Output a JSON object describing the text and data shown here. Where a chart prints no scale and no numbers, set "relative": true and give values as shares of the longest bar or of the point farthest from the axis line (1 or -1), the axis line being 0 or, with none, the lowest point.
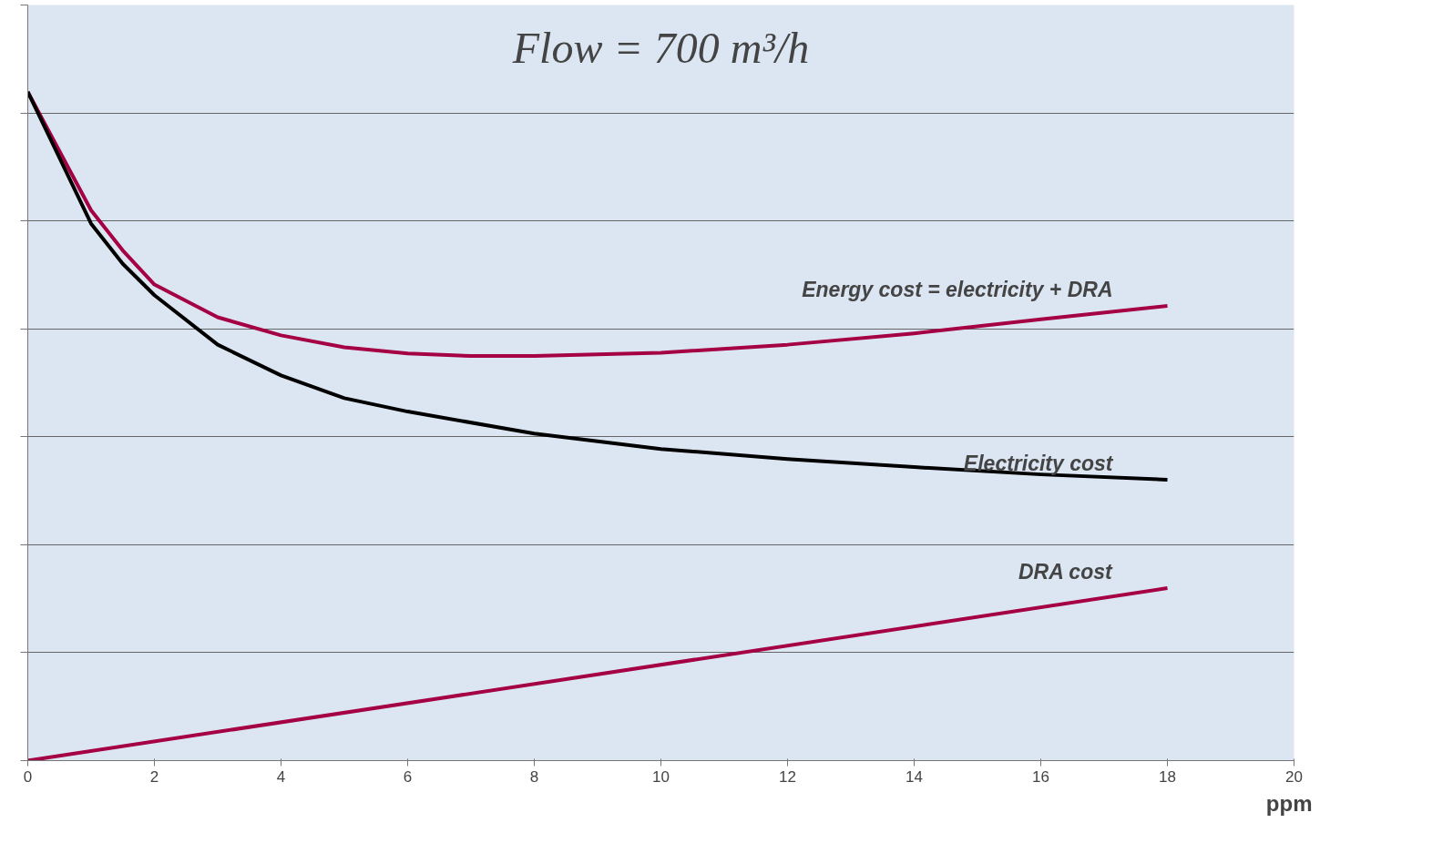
{
  "chart_data": {
    "type": "line",
    "title": "Flow = 700 m³/h",
    "xlabel": "ppm",
    "relative": true,
    "xlim": [
      0,
      20
    ],
    "xticks": [
      0,
      2,
      4,
      6,
      8,
      10,
      12,
      14,
      16,
      18,
      20
    ],
    "tick_labels": "x",
    "grid": "y",
    "marker": "none",
    "line_style": "solid",
    "series": [
      {
        "name": "Energy cost = electricity + DRA",
        "color": "#a50044",
        "x": [
          0,
          1,
          1.5,
          2,
          3,
          4,
          5,
          6,
          7,
          8,
          10,
          12,
          14,
          16,
          18
        ],
        "values": [
          1,
          0.823,
          0.763,
          0.712,
          0.663,
          0.636,
          0.618,
          0.609,
          0.605,
          0.605,
          0.61,
          0.622,
          0.639,
          0.66,
          0.68
        ]
      },
      {
        "name": "Electricity cost",
        "color": "#000000",
        "x": [
          0,
          1,
          1.5,
          2,
          3,
          4,
          5,
          6,
          8,
          10,
          12,
          14,
          16,
          18
        ],
        "values": [
          1,
          0.803,
          0.743,
          0.696,
          0.622,
          0.576,
          0.542,
          0.522,
          0.489,
          0.466,
          0.451,
          0.439,
          0.428,
          0.42
        ]
      },
      {
        "name": "DRA cost",
        "color": "#a50044",
        "x": [
          0,
          18
        ],
        "values": [
          0,
          0.258
        ]
      }
    ]
  }
}
